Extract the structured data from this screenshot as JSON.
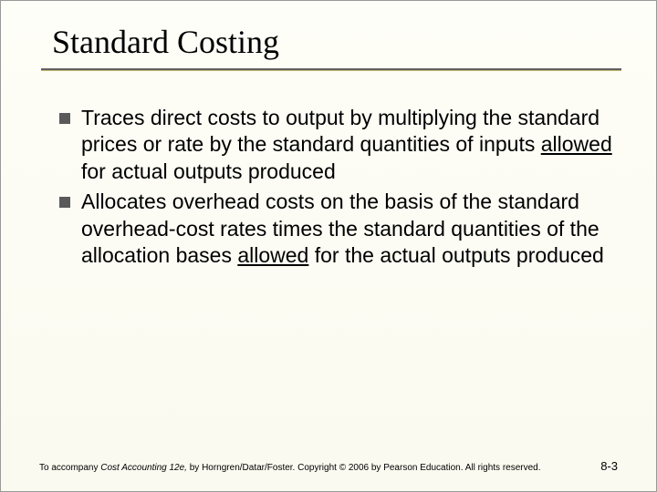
{
  "slide": {
    "title": "Standard Costing",
    "title_fontsize": 36,
    "title_font": "Times New Roman",
    "underline_color": "#606060",
    "underline_accent": "#c8bc70",
    "background": "#fefef8",
    "bullets": [
      {
        "pre": "Traces direct costs to output by multiplying the standard prices or rate by the standard quantities of inputs ",
        "underlined": "allowed",
        "post": " for actual outputs produced"
      },
      {
        "pre": "Allocates overhead costs on the basis of the standard overhead-cost rates times the standard quantities of the allocation bases ",
        "underlined": "allowed",
        "post": " for the actual outputs produced"
      }
    ],
    "bullet_fontsize": 23,
    "bullet_marker_color": "#5a5a5a",
    "footer": {
      "prefix": "To accompany ",
      "book": "Cost Accounting 12e,",
      "suffix": " by Horngren/Datar/Foster. Copyright © 2006 by Pearson Education. All rights reserved.",
      "page": "8-3",
      "fontsize": 10
    }
  }
}
